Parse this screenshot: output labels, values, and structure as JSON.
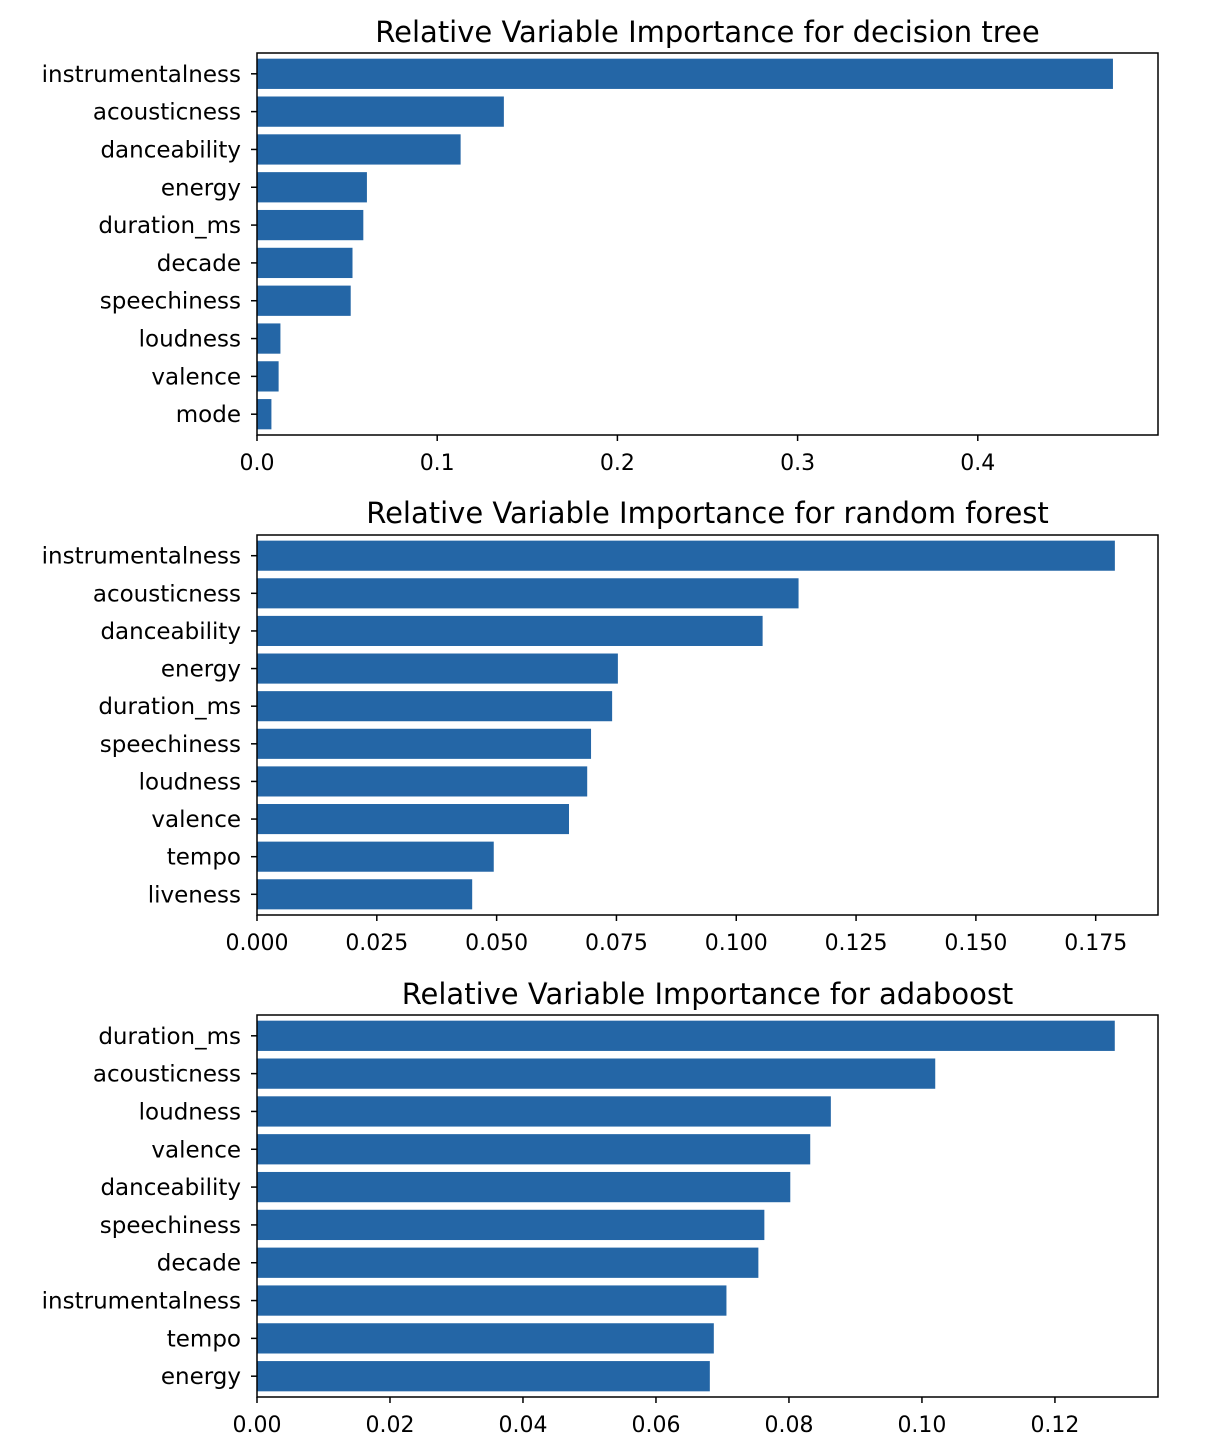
{
  "chart_data": [
    {
      "type": "bar",
      "orientation": "horizontal",
      "title": "Relative Variable Importance for decision tree",
      "xlabel": "",
      "ylabel": "",
      "categories": [
        "instrumentalness",
        "acousticness",
        "danceability",
        "energy",
        "duration_ms",
        "decade",
        "speechiness",
        "loudness",
        "valence",
        "mode"
      ],
      "values": [
        0.475,
        0.137,
        0.113,
        0.061,
        0.059,
        0.053,
        0.052,
        0.013,
        0.012,
        0.008
      ],
      "xlim": [
        0,
        0.5
      ],
      "xticks": [
        0.0,
        0.1,
        0.2,
        0.3,
        0.4
      ],
      "xtick_labels": [
        "0.0",
        "0.1",
        "0.2",
        "0.3",
        "0.4"
      ],
      "grid": false,
      "bar_color": "#2466a6"
    },
    {
      "type": "bar",
      "orientation": "horizontal",
      "title": "Relative Variable Importance for random forest",
      "xlabel": "",
      "ylabel": "",
      "categories": [
        "instrumentalness",
        "acousticness",
        "danceability",
        "energy",
        "duration_ms",
        "speechiness",
        "loudness",
        "valence",
        "tempo",
        "liveness"
      ],
      "values": [
        0.179,
        0.113,
        0.1055,
        0.0753,
        0.0741,
        0.0697,
        0.0689,
        0.0651,
        0.0494,
        0.0449
      ],
      "xlim": [
        0,
        0.188
      ],
      "xticks": [
        0.0,
        0.025,
        0.05,
        0.075,
        0.1,
        0.125,
        0.15,
        0.175
      ],
      "xtick_labels": [
        "0.000",
        "0.025",
        "0.050",
        "0.075",
        "0.100",
        "0.125",
        "0.150",
        "0.175"
      ],
      "grid": false,
      "bar_color": "#2466a6"
    },
    {
      "type": "bar",
      "orientation": "horizontal",
      "title": "Relative Variable Importance for adaboost",
      "xlabel": "",
      "ylabel": "",
      "categories": [
        "duration_ms",
        "acousticness",
        "loudness",
        "valence",
        "danceability",
        "speechiness",
        "decade",
        "instrumentalness",
        "tempo",
        "energy"
      ],
      "values": [
        0.129,
        0.102,
        0.0863,
        0.0832,
        0.0802,
        0.0763,
        0.0754,
        0.0706,
        0.0687,
        0.0681
      ],
      "xlim": [
        0,
        0.1355
      ],
      "xticks": [
        0.0,
        0.02,
        0.04,
        0.06,
        0.08,
        0.1,
        0.12
      ],
      "xtick_labels": [
        "0.00",
        "0.02",
        "0.04",
        "0.06",
        "0.08",
        "0.10",
        "0.12"
      ],
      "grid": false,
      "bar_color": "#2466a6"
    }
  ]
}
